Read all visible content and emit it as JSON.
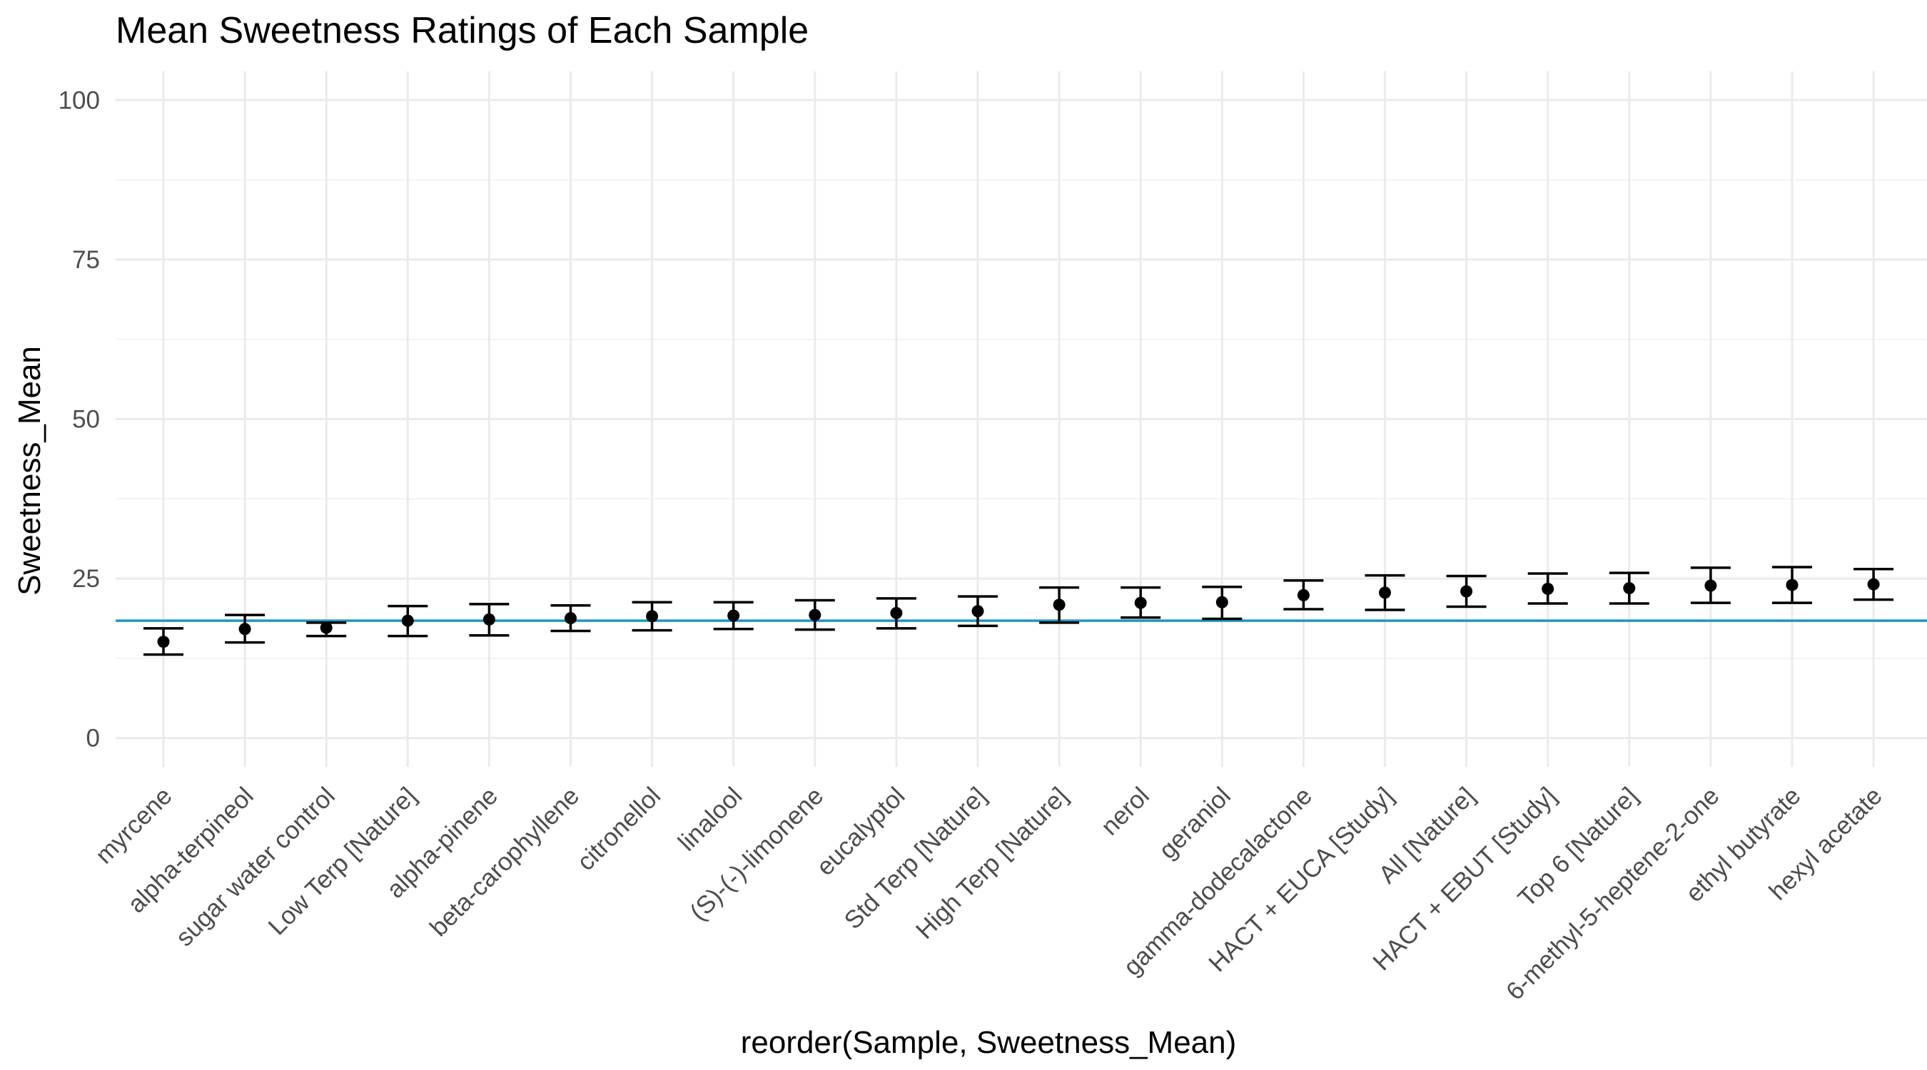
{
  "chart_data": {
    "type": "scatter",
    "title": "Mean Sweetness Ratings of Each Sample",
    "xlabel": "reorder(Sample, Sweetness_Mean)",
    "ylabel": "Sweetness_Mean",
    "ylim": [
      -4.5,
      104.5
    ],
    "yticks": [
      0,
      25,
      50,
      75,
      100
    ],
    "grid": true,
    "reference_line": {
      "y": 18.4,
      "color": "#1a9ac0"
    },
    "point_color": "#000000",
    "categories": [
      "myrcene",
      "alpha-terpineol",
      "sugar water control",
      "Low Terp [Nature]",
      "alpha-pinene",
      "beta-carophyllene",
      "citronellol",
      "linalool",
      "(S)-(-)-limonene",
      "eucalyptol",
      "Std Terp [Nature]",
      "High Terp [Nature]",
      "nerol",
      "geraniol",
      "gamma-dodecalactone",
      "HACT + EUCA [Study]",
      "All [Nature]",
      "HACT + EBUT [Study]",
      "Top 6 [Nature]",
      "6-methyl-5-heptene-2-one",
      "ethyl butyrate",
      "hexyl acetate"
    ],
    "series": [
      {
        "values": [
          15.1,
          17.1,
          17.3,
          18.4,
          18.6,
          18.8,
          19.1,
          19.2,
          19.3,
          19.6,
          19.9,
          20.9,
          21.2,
          21.3,
          22.4,
          22.8,
          23.0,
          23.4,
          23.5,
          23.9,
          24.0,
          24.1
        ],
        "lower": [
          13.1,
          15.0,
          16.0,
          16.0,
          16.1,
          16.8,
          16.9,
          17.1,
          17.0,
          17.2,
          17.6,
          18.1,
          18.9,
          18.7,
          20.2,
          20.1,
          20.6,
          21.1,
          21.1,
          21.2,
          21.2,
          21.7
        ],
        "upper": [
          17.2,
          19.3,
          18.1,
          20.7,
          21.0,
          20.8,
          21.3,
          21.3,
          21.6,
          21.9,
          22.2,
          23.6,
          23.6,
          23.7,
          24.7,
          25.5,
          25.4,
          25.8,
          25.9,
          26.7,
          26.8,
          26.5
        ]
      }
    ]
  }
}
